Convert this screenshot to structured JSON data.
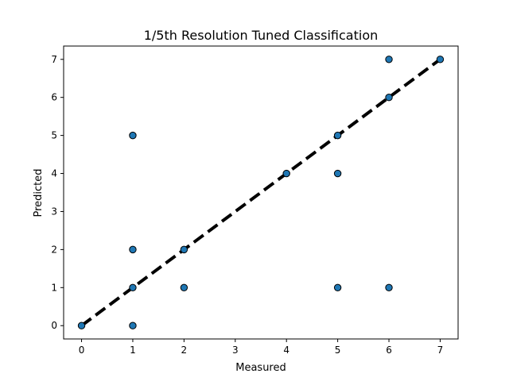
{
  "chart_data": {
    "type": "scatter",
    "title": "1/5th Resolution Tuned Classification",
    "xlabel": "Measured",
    "ylabel": "Predicted",
    "xlim": [
      -0.35,
      7.35
    ],
    "ylim": [
      -0.35,
      7.35
    ],
    "xticks": [
      "0",
      "1",
      "2",
      "3",
      "4",
      "5",
      "6",
      "7"
    ],
    "yticks": [
      "0",
      "1",
      "2",
      "3",
      "4",
      "5",
      "6",
      "7"
    ],
    "grid": false,
    "marker_color": "#1f77b4",
    "marker_edge_color": "#000000",
    "reference_line": {
      "style": "dashed",
      "color": "#000000",
      "from": [
        0,
        0
      ],
      "to": [
        7,
        7
      ]
    },
    "points": [
      {
        "x": 0,
        "y": 0
      },
      {
        "x": 1,
        "y": 0
      },
      {
        "x": 1,
        "y": 1
      },
      {
        "x": 1,
        "y": 2
      },
      {
        "x": 1,
        "y": 5
      },
      {
        "x": 2,
        "y": 1
      },
      {
        "x": 2,
        "y": 2
      },
      {
        "x": 4,
        "y": 4
      },
      {
        "x": 5,
        "y": 1
      },
      {
        "x": 5,
        "y": 4
      },
      {
        "x": 5,
        "y": 5
      },
      {
        "x": 6,
        "y": 1
      },
      {
        "x": 6,
        "y": 6
      },
      {
        "x": 6,
        "y": 7
      },
      {
        "x": 7,
        "y": 7
      }
    ]
  }
}
